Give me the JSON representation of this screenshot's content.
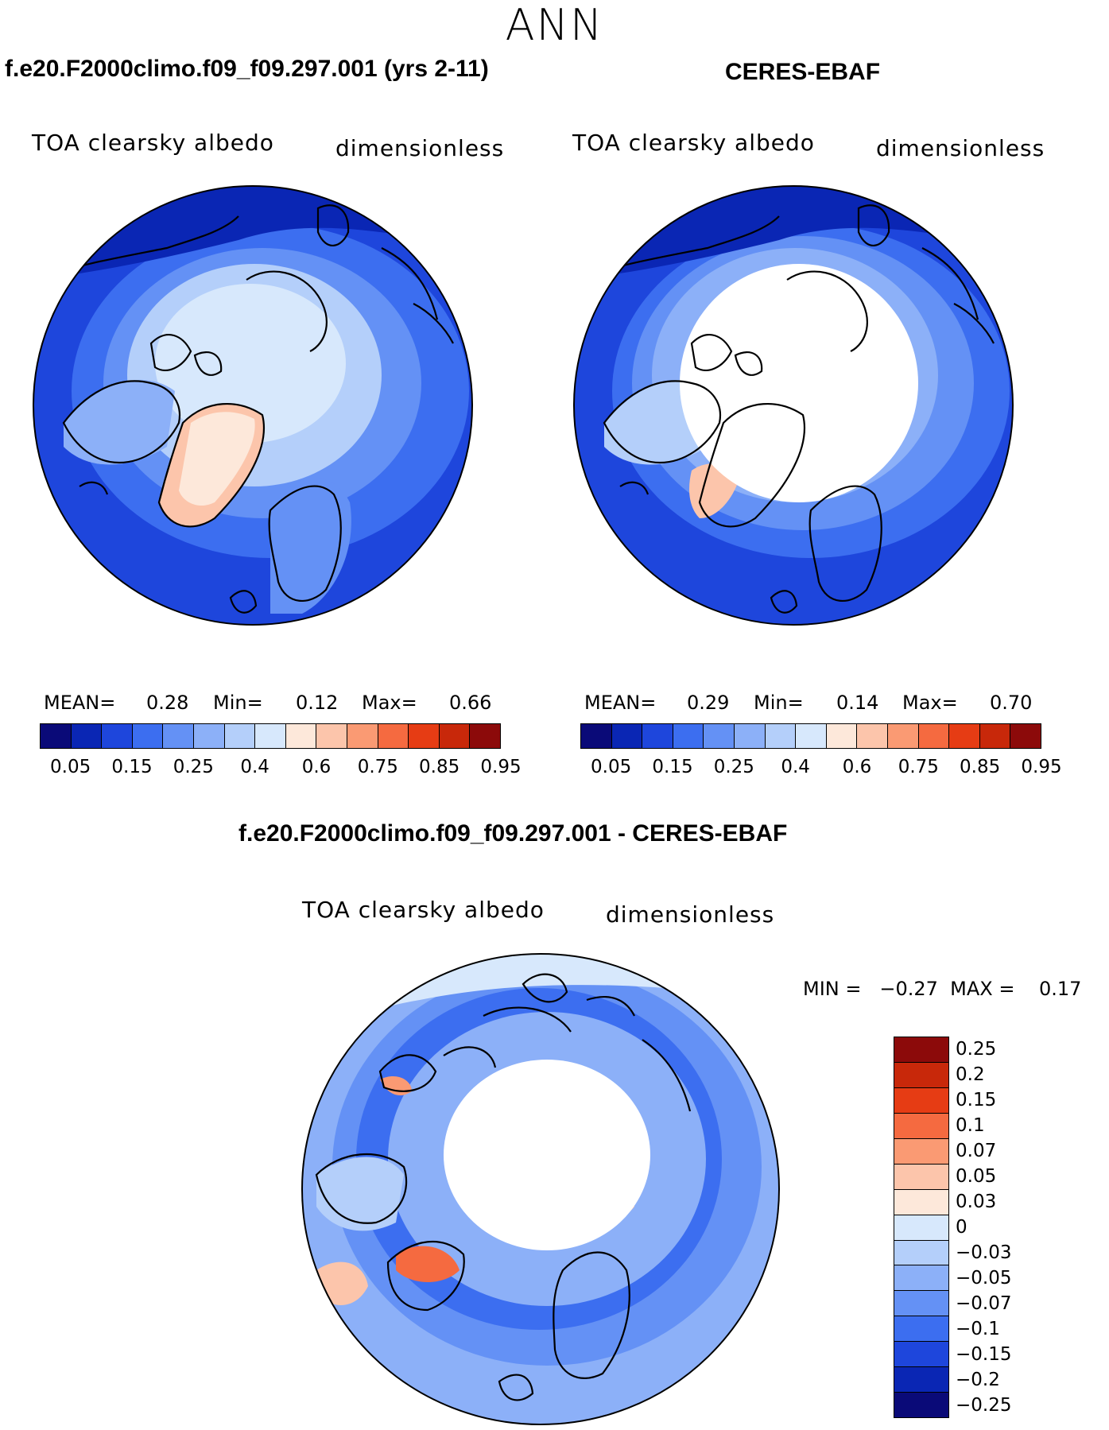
{
  "season": "ANN",
  "panel1": {
    "title": "f.e20.F2000climo.f09_f09.297.001 (yrs 2-11)",
    "var_left": "TOA clearsky albedo",
    "var_right": "dimensionless",
    "mean_label": "MEAN=",
    "mean": "0.28",
    "min_label": "Min=",
    "min": "0.12",
    "max_label": "Max=",
    "max": "0.66"
  },
  "panel2": {
    "title": "CERES-EBAF",
    "var_left": "TOA clearsky albedo",
    "var_right": "dimensionless",
    "mean_label": "MEAN=",
    "mean": "0.29",
    "min_label": "Min=",
    "min": "0.14",
    "max_label": "Max=",
    "max": "0.70"
  },
  "panel3": {
    "title": "f.e20.F2000climo.f09_f09.297.001 - CERES-EBAF",
    "var_left": "TOA clearsky albedo",
    "var_right": "dimensionless",
    "minmax": "MIN =   −0.27  MAX =    0.17"
  },
  "colorbar_abs": {
    "colors": [
      "#0a0a78",
      "#0a26b4",
      "#1e46dc",
      "#3c6ef0",
      "#6491f5",
      "#8cb0f8",
      "#b4cffa",
      "#d7e8fc",
      "#fde8da",
      "#fcc5ab",
      "#fa9a73",
      "#f56a40",
      "#e63c14",
      "#c8280a",
      "#8c0a0a"
    ],
    "ticks": [
      "0.05",
      "0.15",
      "0.25",
      "0.4",
      "0.6",
      "0.75",
      "0.85",
      "0.95"
    ]
  },
  "colorbar_diff": {
    "colors": [
      "#8c0a0a",
      "#c8280a",
      "#e63c14",
      "#f56a40",
      "#fa9a73",
      "#fcc5ab",
      "#fde8da",
      "#d7e8fc",
      "#b4cffa",
      "#8cb0f8",
      "#6491f5",
      "#3c6ef0",
      "#1e46dc",
      "#0a26b4",
      "#0a0a78"
    ],
    "ticks": [
      "0.25",
      "0.2",
      "0.15",
      "0.1",
      "0.07",
      "0.05",
      "0.03",
      "0",
      "−0.03",
      "−0.05",
      "−0.07",
      "−0.1",
      "−0.15",
      "−0.2",
      "−0.25"
    ]
  }
}
